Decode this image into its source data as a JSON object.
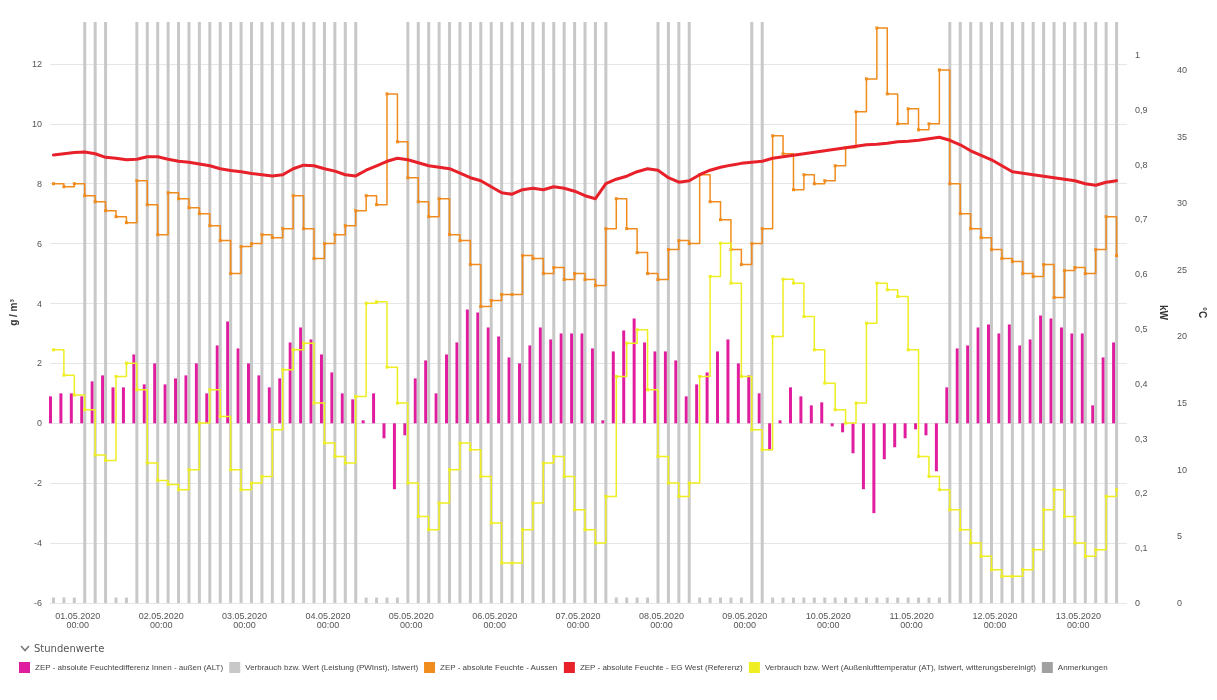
{
  "chart_data": {
    "type": "bar",
    "legend_title": "Stundenwerte",
    "ylabel": "g / m³",
    "y2label": "kW",
    "y3label": "°C",
    "xlim": [
      "2020-04-30T16:00",
      "2020-05-13T14:00"
    ],
    "xticks": [
      {
        "value": "2020-05-01",
        "label": "01.05.2020\n00:00"
      },
      {
        "value": "2020-05-02",
        "label": "02.05.2020\n00:00"
      },
      {
        "value": "2020-05-03",
        "label": "03.05.2020\n00:00"
      },
      {
        "value": "2020-05-04",
        "label": "04.05.2020\n00:00"
      },
      {
        "value": "2020-05-05",
        "label": "05.05.2020\n00:00"
      },
      {
        "value": "2020-05-06",
        "label": "06.05.2020\n00:00"
      },
      {
        "value": "2020-05-07",
        "label": "07.05.2020\n00:00"
      },
      {
        "value": "2020-05-08",
        "label": "08.05.2020\n00:00"
      },
      {
        "value": "2020-05-09",
        "label": "09.05.2020\n00:00"
      },
      {
        "value": "2020-05-10",
        "label": "10.05.2020\n00:00"
      },
      {
        "value": "2020-05-11",
        "label": "11.05.2020\n00:00"
      },
      {
        "value": "2020-05-12",
        "label": "12.05.2020\n00:00"
      },
      {
        "value": "2020-05-13",
        "label": "13.05.2020\n00:00"
      }
    ],
    "ylim": [
      -6,
      13.4
    ],
    "yticks": [
      -6,
      -4,
      -2,
      0,
      2,
      4,
      6,
      8,
      10,
      12
    ],
    "y2lim": [
      0,
      1.06
    ],
    "y2ticks": [
      0,
      {
        "value": 0.1,
        "label": "0,1"
      },
      {
        "value": 0.2,
        "label": "0,2"
      },
      {
        "value": 0.3,
        "label": "0,3"
      },
      {
        "value": 0.4,
        "label": "0,4"
      },
      {
        "value": 0.5,
        "label": "0,5"
      },
      {
        "value": 0.6,
        "label": "0,6"
      },
      {
        "value": 0.7,
        "label": "0,7"
      },
      {
        "value": 0.8,
        "label": "0,8"
      },
      {
        "value": 0.9,
        "label": "0,9"
      },
      1
    ],
    "y3lim": [
      0,
      43.6
    ],
    "y3ticks": [
      0,
      5,
      10,
      15,
      20,
      25,
      30,
      35,
      40
    ],
    "grid": "y",
    "legend": "bottom",
    "x": [
      "2020-04-30T17:00",
      "2020-04-30T20:00",
      "2020-04-30T23:00",
      "2020-05-01T02:00",
      "2020-05-01T05:00",
      "2020-05-01T08:00",
      "2020-05-01T11:00",
      "2020-05-01T14:00",
      "2020-05-01T17:00",
      "2020-05-01T20:00",
      "2020-05-01T23:00",
      "2020-05-02T02:00",
      "2020-05-02T05:00",
      "2020-05-02T08:00",
      "2020-05-02T11:00",
      "2020-05-02T14:00",
      "2020-05-02T17:00",
      "2020-05-02T20:00",
      "2020-05-02T23:00",
      "2020-05-03T02:00",
      "2020-05-03T05:00",
      "2020-05-03T08:00",
      "2020-05-03T11:00",
      "2020-05-03T14:00",
      "2020-05-03T17:00",
      "2020-05-03T20:00",
      "2020-05-03T23:00",
      "2020-05-04T02:00",
      "2020-05-04T05:00",
      "2020-05-04T08:00",
      "2020-05-04T11:00",
      "2020-05-04T14:00",
      "2020-05-04T17:00",
      "2020-05-04T20:00",
      "2020-05-04T23:00",
      "2020-05-05T02:00",
      "2020-05-05T05:00",
      "2020-05-05T08:00",
      "2020-05-05T11:00",
      "2020-05-05T14:00",
      "2020-05-05T17:00",
      "2020-05-05T20:00",
      "2020-05-05T23:00",
      "2020-05-06T02:00",
      "2020-05-06T05:00",
      "2020-05-06T08:00",
      "2020-05-06T11:00",
      "2020-05-06T14:00",
      "2020-05-06T17:00",
      "2020-05-06T20:00",
      "2020-05-06T23:00",
      "2020-05-07T02:00",
      "2020-05-07T05:00",
      "2020-05-07T08:00",
      "2020-05-07T11:00",
      "2020-05-07T14:00",
      "2020-05-07T17:00",
      "2020-05-07T20:00",
      "2020-05-07T23:00",
      "2020-05-08T02:00",
      "2020-05-08T05:00",
      "2020-05-08T08:00",
      "2020-05-08T11:00",
      "2020-05-08T14:00",
      "2020-05-08T17:00",
      "2020-05-08T20:00",
      "2020-05-08T23:00",
      "2020-05-09T02:00",
      "2020-05-09T05:00",
      "2020-05-09T08:00",
      "2020-05-09T11:00",
      "2020-05-09T14:00",
      "2020-05-09T17:00",
      "2020-05-09T20:00",
      "2020-05-09T23:00",
      "2020-05-10T02:00",
      "2020-05-10T05:00",
      "2020-05-10T08:00",
      "2020-05-10T11:00",
      "2020-05-10T14:00",
      "2020-05-10T17:00",
      "2020-05-10T20:00",
      "2020-05-10T23:00",
      "2020-05-11T02:00",
      "2020-05-11T05:00",
      "2020-05-11T08:00",
      "2020-05-11T11:00",
      "2020-05-11T14:00",
      "2020-05-11T17:00",
      "2020-05-11T20:00",
      "2020-05-11T23:00",
      "2020-05-12T02:00",
      "2020-05-12T05:00",
      "2020-05-12T08:00",
      "2020-05-12T11:00",
      "2020-05-12T14:00",
      "2020-05-12T17:00",
      "2020-05-12T20:00",
      "2020-05-12T23:00",
      "2020-05-13T02:00",
      "2020-05-13T05:00",
      "2020-05-13T08:00",
      "2020-05-13T11:00"
    ],
    "series": [
      {
        "name": "ZEP - absolute Feuchtedifferenz Innen - außen (ALT)",
        "color": "#e11d9f",
        "values": [
          0.9,
          1.0,
          1.0,
          0.9,
          1.4,
          1.6,
          1.2,
          1.2,
          2.3,
          1.3,
          2.0,
          1.3,
          1.5,
          1.6,
          2.0,
          1.0,
          2.6,
          3.4,
          2.5,
          2.0,
          1.6,
          1.2,
          1.5,
          2.7,
          3.2,
          2.8,
          2.3,
          1.7,
          1.0,
          0.8,
          0.1,
          1.0,
          -0.5,
          -2.2,
          -0.4,
          1.5,
          2.1,
          1.0,
          2.3,
          2.7,
          3.8,
          3.7,
          3.2,
          2.9,
          2.2,
          2.0,
          2.6,
          3.2,
          2.8,
          3.0,
          3.0,
          3.0,
          2.5,
          0.1,
          2.4,
          3.1,
          3.5,
          2.7,
          2.4,
          2.4,
          2.1,
          0.9,
          1.3,
          1.7,
          2.4,
          2.8,
          2.0,
          1.6,
          1.0,
          -0.9,
          0.1,
          1.2,
          0.9,
          0.6,
          0.7,
          -0.1,
          -0.3,
          -1.0,
          -2.2,
          -3.0,
          -1.2,
          -0.8,
          -0.5,
          -0.2,
          -0.4,
          -1.6,
          1.2,
          2.5,
          2.6,
          3.2,
          3.3,
          3.0,
          3.3,
          2.6,
          2.8,
          3.6,
          3.5,
          3.2,
          3.0,
          3.0,
          0.6,
          2.2,
          2.7
        ]
      },
      {
        "name": "Verbrauch bzw. Wert (Leistung (PWInst), Istwert)",
        "type": "bar",
        "axis": "y2",
        "color": "#c8c8c8",
        "values": [
          0.01,
          0.01,
          0.01,
          1.06,
          1.06,
          1.06,
          0.01,
          0.01,
          1.06,
          1.06,
          1.06,
          1.06,
          1.06,
          1.06,
          1.06,
          1.06,
          1.06,
          1.06,
          1.06,
          1.06,
          1.06,
          1.06,
          1.06,
          1.06,
          1.06,
          1.06,
          1.06,
          1.06,
          1.06,
          1.06,
          0.01,
          0.01,
          0.01,
          0.01,
          1.06,
          1.06,
          1.06,
          1.06,
          1.06,
          1.06,
          1.06,
          1.06,
          1.06,
          1.06,
          1.06,
          1.06,
          1.06,
          1.06,
          1.06,
          1.06,
          1.06,
          1.06,
          1.06,
          1.06,
          0.01,
          0.01,
          0.01,
          0.01,
          1.06,
          1.06,
          1.06,
          1.06,
          0.01,
          0.01,
          0.01,
          0.01,
          0.01,
          1.06,
          1.06,
          0.01,
          0.01,
          0.01,
          0.01,
          0.01,
          0.01,
          0.01,
          0.01,
          0.01,
          0.01,
          0.01,
          0.01,
          0.01,
          0.01,
          0.01,
          0.01,
          0.01,
          1.06,
          1.06,
          1.06,
          1.06,
          1.06,
          1.06,
          1.06,
          1.06,
          1.06,
          1.06,
          1.06,
          1.06,
          1.06,
          1.06,
          1.06,
          1.06,
          1.06
        ]
      },
      {
        "name": "ZEP - absolute Feuchte - Aussen",
        "type": "step",
        "marker": "square",
        "color": "#f08c1e",
        "values": [
          8.0,
          7.9,
          8.0,
          7.6,
          7.4,
          7.1,
          6.9,
          6.7,
          8.1,
          7.3,
          6.3,
          7.7,
          7.5,
          7.2,
          7.0,
          6.6,
          6.1,
          5.0,
          5.9,
          6.0,
          6.3,
          6.2,
          6.5,
          7.6,
          6.5,
          5.5,
          6.0,
          6.3,
          6.6,
          7.1,
          7.6,
          7.3,
          11.0,
          9.4,
          8.2,
          7.4,
          6.9,
          7.5,
          6.3,
          6.1,
          5.3,
          3.9,
          4.1,
          4.3,
          4.3,
          5.6,
          5.5,
          5.0,
          5.2,
          4.8,
          5.0,
          4.8,
          4.6,
          6.5,
          7.5,
          6.5,
          5.7,
          5.0,
          4.8,
          5.8,
          6.1,
          6.0,
          8.3,
          7.4,
          6.8,
          5.8,
          5.3,
          6.0,
          6.5,
          9.6,
          9.0,
          7.8,
          8.3,
          8.0,
          8.1,
          8.6,
          9.2,
          10.4,
          11.5,
          13.2,
          11.0,
          10.0,
          10.5,
          9.8,
          10.0,
          11.8,
          8.0,
          7.0,
          6.5,
          6.2,
          5.8,
          5.5,
          5.4,
          5.0,
          4.9,
          5.3,
          4.2,
          5.1,
          5.2,
          5.0,
          5.8,
          6.9,
          5.6
        ]
      },
      {
        "name": "ZEP - absolute Feuchte - EG West (Referenz)",
        "type": "line",
        "marker": "none",
        "color": "#e8202a",
        "values": [
          8.96,
          9.0,
          9.04,
          9.06,
          9.0,
          8.88,
          8.85,
          8.8,
          8.82,
          8.9,
          8.9,
          8.82,
          8.75,
          8.72,
          8.66,
          8.6,
          8.5,
          8.44,
          8.4,
          8.34,
          8.3,
          8.26,
          8.3,
          8.5,
          8.62,
          8.6,
          8.5,
          8.42,
          8.3,
          8.26,
          8.45,
          8.6,
          8.75,
          8.85,
          8.8,
          8.7,
          8.6,
          8.55,
          8.5,
          8.35,
          8.2,
          8.1,
          7.9,
          7.7,
          7.65,
          7.8,
          7.85,
          7.8,
          7.9,
          7.85,
          7.75,
          7.6,
          7.5,
          8.0,
          8.15,
          8.25,
          8.4,
          8.5,
          8.45,
          8.2,
          8.05,
          8.1,
          8.3,
          8.45,
          8.55,
          8.62,
          8.68,
          8.72,
          8.75,
          8.85,
          8.9,
          8.95,
          9.0,
          9.05,
          9.1,
          9.15,
          9.2,
          9.25,
          9.3,
          9.32,
          9.35,
          9.4,
          9.42,
          9.45,
          9.5,
          9.55,
          9.45,
          9.3,
          9.1,
          8.95,
          8.8,
          8.6,
          8.4,
          8.35,
          8.3,
          8.25,
          8.2,
          8.15,
          8.1,
          8.0,
          7.95,
          8.05,
          8.1
        ]
      },
      {
        "name": "Verbrauch bzw. Wert (Außenlufttemperatur (AT), Istwert, witterungsbereinigt)",
        "type": "step",
        "axis": "y3",
        "marker": "square",
        "color": "#eeee22",
        "values": [
          19.0,
          17.1,
          15.6,
          14.5,
          11.1,
          10.7,
          17.0,
          18.0,
          16.0,
          10.5,
          9.2,
          8.9,
          8.5,
          10.0,
          13.5,
          16.0,
          14.0,
          10.0,
          8.5,
          9.0,
          9.5,
          13.0,
          17.5,
          19.0,
          19.5,
          15.0,
          12.0,
          11.0,
          10.5,
          15.5,
          22.5,
          22.6,
          17.7,
          15.0,
          9.0,
          6.5,
          5.5,
          7.5,
          10.0,
          12.0,
          11.5,
          9.5,
          6.0,
          3.0,
          3.0,
          5.5,
          7.5,
          10.5,
          11.0,
          9.5,
          7.0,
          5.5,
          4.5,
          8.0,
          17.0,
          19.5,
          20.5,
          16.0,
          11.0,
          9.0,
          8.0,
          9.0,
          17.0,
          24.5,
          27.0,
          24.0,
          17.0,
          13.0,
          11.5,
          20.0,
          24.3,
          24.0,
          21.5,
          19.0,
          16.5,
          14.5,
          13.5,
          15.0,
          21.0,
          24.0,
          23.5,
          23.0,
          19.0,
          11.0,
          9.5,
          8.5,
          7.0,
          5.5,
          4.5,
          3.5,
          2.5,
          2.0,
          2.0,
          2.5,
          4.0,
          7.0,
          8.5,
          6.5,
          4.5,
          3.5,
          4.0,
          8.0,
          8.5
        ]
      },
      {
        "name": "Anmerkungen",
        "color": "#a0a0a0",
        "values": [
          null,
          null,
          null,
          null,
          null,
          null,
          null,
          null,
          null,
          null,
          null,
          null,
          null,
          null,
          null,
          null,
          null,
          null,
          null,
          null,
          null,
          null,
          null,
          null,
          null,
          null,
          null,
          null,
          null,
          null,
          null,
          null,
          null,
          null,
          null,
          null,
          null,
          null,
          null,
          null,
          null,
          null,
          null,
          null,
          null,
          null,
          null,
          null,
          null,
          null,
          null,
          null,
          null,
          null,
          null,
          null,
          null,
          null,
          null,
          null,
          null,
          null,
          null,
          null,
          null,
          null,
          null,
          null,
          null,
          null,
          null,
          null,
          null,
          null,
          null,
          null,
          null,
          null,
          null,
          null,
          null,
          null,
          null,
          null,
          null,
          null,
          null,
          null,
          null,
          null,
          null,
          null,
          null,
          null,
          null,
          null,
          null,
          null,
          null,
          null,
          null,
          null,
          null
        ]
      }
    ]
  }
}
